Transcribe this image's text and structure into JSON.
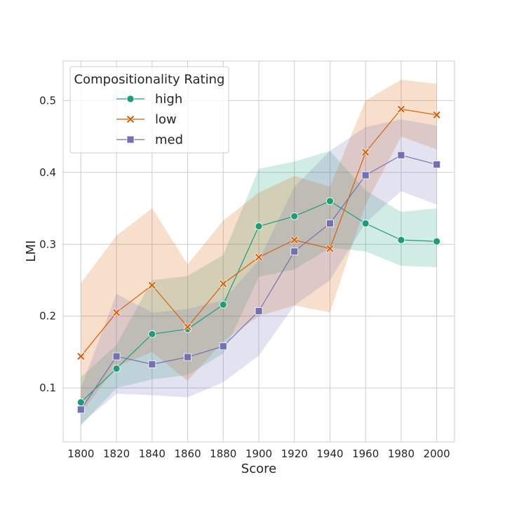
{
  "chart_data": {
    "type": "line",
    "title": "",
    "xlabel": "Score",
    "ylabel": "LMI",
    "x": [
      1800,
      1820,
      1840,
      1860,
      1880,
      1900,
      1920,
      1940,
      1960,
      1980,
      2000
    ],
    "xlim": [
      1790,
      2010
    ],
    "ylim": [
      0.025,
      0.555
    ],
    "yticks": [
      0.1,
      0.2,
      0.3,
      0.4,
      0.5
    ],
    "ytick_labels": [
      "0.1",
      "0.2",
      "0.3",
      "0.4",
      "0.5"
    ],
    "xtick_labels": [
      "1800",
      "1820",
      "1840",
      "1860",
      "1880",
      "1900",
      "1920",
      "1940",
      "1960",
      "1980",
      "2000"
    ],
    "grid": true,
    "legend": {
      "title": "Compositionality Rating",
      "placement": "upper-left"
    },
    "series": [
      {
        "name": "high",
        "marker": "circle",
        "color": "#1b9e77",
        "values": [
          0.08,
          0.127,
          0.175,
          0.182,
          0.216,
          0.325,
          0.339,
          0.36,
          0.329,
          0.306,
          0.304
        ],
        "ci_lower": [
          0.048,
          0.1,
          0.112,
          0.118,
          0.148,
          0.255,
          0.265,
          0.295,
          0.29,
          0.27,
          0.268
        ],
        "ci_upper": [
          0.115,
          0.16,
          0.25,
          0.256,
          0.285,
          0.405,
          0.415,
          0.43,
          0.375,
          0.345,
          0.35
        ]
      },
      {
        "name": "low",
        "marker": "x",
        "color": "#d95f02",
        "values": [
          0.144,
          0.205,
          0.243,
          0.185,
          0.245,
          0.282,
          0.306,
          0.294,
          0.428,
          0.488,
          0.48
        ],
        "ci_lower": [
          0.065,
          0.13,
          0.15,
          0.11,
          0.165,
          0.2,
          0.215,
          0.205,
          0.355,
          0.45,
          0.432
        ],
        "ci_upper": [
          0.246,
          0.312,
          0.35,
          0.272,
          0.333,
          0.372,
          0.395,
          0.38,
          0.5,
          0.529,
          0.523
        ]
      },
      {
        "name": "med",
        "marker": "square",
        "color": "#7570b3",
        "values": [
          0.07,
          0.144,
          0.133,
          0.143,
          0.158,
          0.207,
          0.29,
          0.329,
          0.396,
          0.424,
          0.411
        ],
        "ci_lower": [
          0.05,
          0.092,
          0.09,
          0.087,
          0.108,
          0.145,
          0.215,
          0.25,
          0.33,
          0.374,
          0.355
        ],
        "ci_upper": [
          0.1,
          0.231,
          0.205,
          0.21,
          0.222,
          0.278,
          0.38,
          0.43,
          0.463,
          0.474,
          0.465
        ]
      }
    ]
  }
}
